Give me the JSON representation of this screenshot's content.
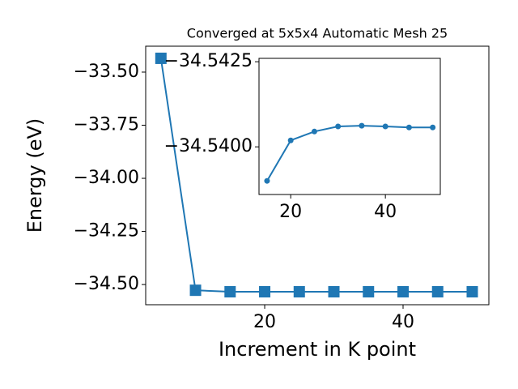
{
  "chart_data": [
    {
      "type": "line",
      "title": "Converged at 5x5x4 Automatic Mesh 25",
      "x_label": "Increment in K point",
      "y_label": "Energy (eV)",
      "x": [
        5,
        10,
        15,
        20,
        25,
        30,
        35,
        40,
        45,
        50
      ],
      "series": [
        {
          "color": "#1f77b4",
          "marker": "square",
          "values": [
            -33.435,
            -34.527,
            -34.534,
            -34.534,
            -34.534,
            -34.534,
            -34.534,
            -34.534,
            -34.534,
            -34.534
          ]
        }
      ],
      "xlim": [
        2.8,
        52.4
      ],
      "xticks": [
        20,
        40
      ],
      "ylim": [
        -34.595,
        -33.378
      ],
      "yticks": [
        {
          "value": -33.5,
          "label": "−33.50"
        },
        {
          "value": -33.75,
          "label": "−33.75"
        },
        {
          "value": -34.0,
          "label": "−34.00"
        },
        {
          "value": -34.25,
          "label": "−34.25"
        },
        {
          "value": -34.5,
          "label": "−34.50"
        }
      ]
    },
    {
      "type": "line",
      "x": [
        15,
        20,
        25,
        30,
        35,
        40,
        45,
        50
      ],
      "series": [
        {
          "color": "#1f77b4",
          "marker": "circle",
          "values": [
            -34.539,
            -34.54019,
            -34.54045,
            -34.5406,
            -34.54062,
            -34.5406,
            -34.54057,
            -34.54057
          ]
        }
      ],
      "xlim": [
        13.3,
        51.6
      ],
      "xticks": [
        20,
        40
      ],
      "ylim": [
        -34.5386,
        -34.5426
      ],
      "yticks": [
        {
          "value": -34.5425,
          "label": "−34.5425"
        },
        {
          "value": -34.54,
          "label": "−34.5400"
        }
      ]
    }
  ]
}
